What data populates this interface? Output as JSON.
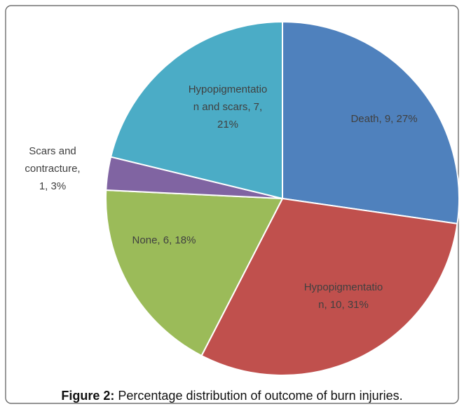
{
  "chart_data": {
    "type": "pie",
    "labels": [
      [
        "Death, 9, 27%"
      ],
      [
        "Hypopigmentatio",
        "n, 10, 31%"
      ],
      [
        "None, 6, 18%"
      ],
      [
        "Scars and",
        "contracture,",
        "1, 3%"
      ],
      [
        "Hypopigmentatio",
        "n and scars, 7,",
        "21%"
      ]
    ],
    "values": [
      9,
      10,
      6,
      1,
      7
    ],
    "colors": [
      "#4f81bd",
      "#c0504d",
      "#9bbb59",
      "#8064a2",
      "#4bacc6"
    ],
    "caption": {
      "label": "Figure 2:",
      "text": " Percentage distribution of outcome of burn injuries."
    }
  }
}
